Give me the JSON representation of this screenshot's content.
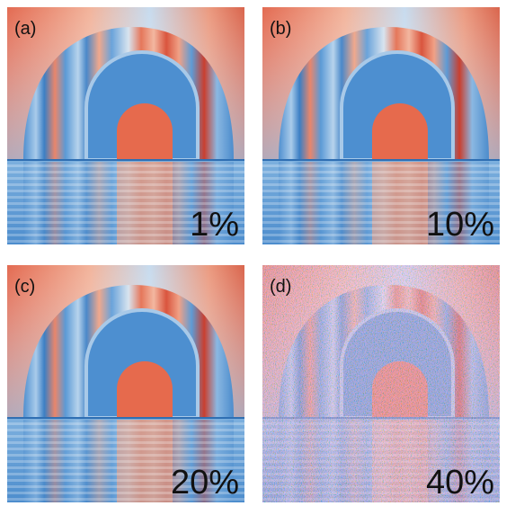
{
  "panels": [
    {
      "label": "(a)",
      "caption": "1%"
    },
    {
      "label": "(b)",
      "caption": "10%"
    },
    {
      "label": "(c)",
      "caption": "20%"
    },
    {
      "label": "(d)",
      "caption": "40%"
    }
  ]
}
